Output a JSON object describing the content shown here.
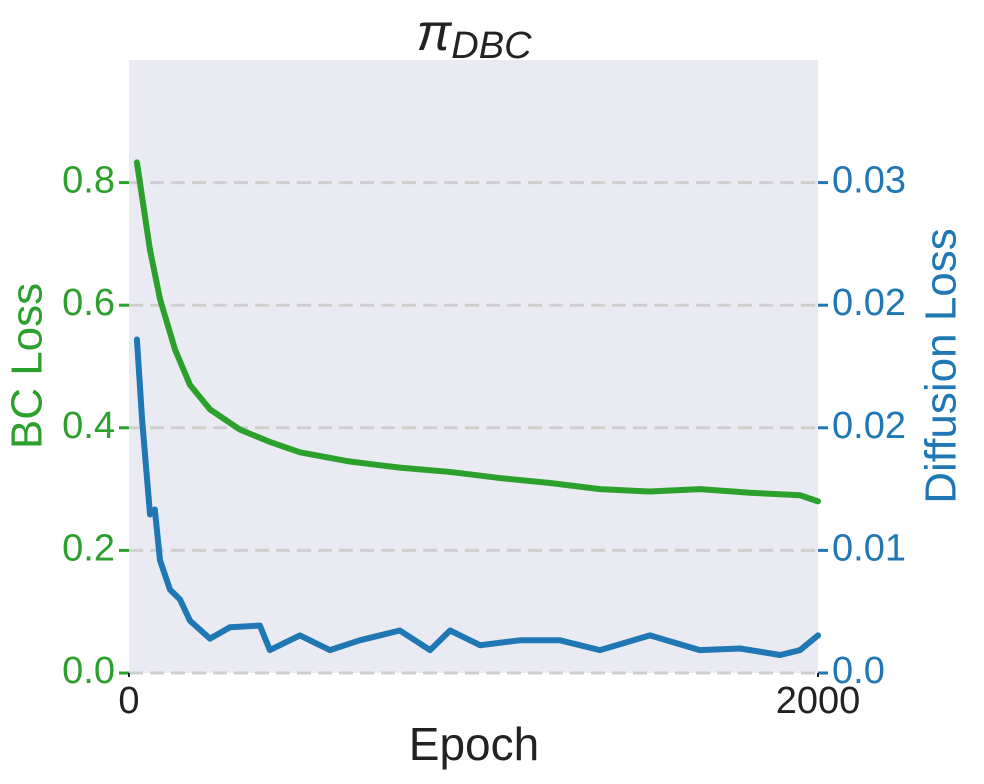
{
  "chart_data": {
    "type": "line",
    "title": {
      "symbol": "π",
      "subscript": "DBC"
    },
    "xlabel": "Epoch",
    "ylabel": "BC Loss",
    "y2label": "Diffusion Loss",
    "xlim": [
      0,
      2000
    ],
    "xticks": [
      0,
      2000
    ],
    "ylim": [
      0,
      1.0
    ],
    "yticks": [
      {
        "value": 0,
        "label": "0.0"
      },
      0.2,
      0.4,
      0.6,
      0.8
    ],
    "y2lim": [
      0,
      0.0375
    ],
    "y2ticks": [
      {
        "value": 0,
        "label": "0.0"
      },
      {
        "value": 0.0075,
        "label": "0.01"
      },
      {
        "value": 0.015,
        "label": "0.02"
      },
      {
        "value": 0.0225,
        "label": "0.02"
      },
      0.03
    ],
    "grid": true,
    "series": [
      {
        "name": "BC Loss",
        "color": "#2ca02c",
        "axis": "y",
        "x": [
          23,
          61,
          90,
          134,
          177,
          235,
          322,
          409,
          496,
          641,
          786,
          932,
          1077,
          1222,
          1367,
          1512,
          1657,
          1803,
          1948,
          2000
        ],
        "values": [
          0.833,
          0.69,
          0.61,
          0.527,
          0.47,
          0.43,
          0.397,
          0.377,
          0.36,
          0.345,
          0.335,
          0.328,
          0.318,
          0.31,
          0.3,
          0.296,
          0.3,
          0.294,
          0.29,
          0.28
        ]
      },
      {
        "name": "Diffusion Loss",
        "color": "#1f77b4",
        "axis": "y2",
        "x": [
          23,
          38,
          61,
          75,
          90,
          119,
          148,
          177,
          235,
          293,
          380,
          409,
          496,
          583,
          670,
          786,
          874,
          932,
          1019,
          1135,
          1251,
          1367,
          1512,
          1657,
          1774,
          1890,
          1948,
          2000
        ],
        "values": [
          0.0204,
          0.0155,
          0.0097,
          0.01,
          0.0069,
          0.0051,
          0.0045,
          0.0032,
          0.0021,
          0.0028,
          0.0029,
          0.0014,
          0.0023,
          0.0014,
          0.002,
          0.0026,
          0.0014,
          0.0026,
          0.0017,
          0.002,
          0.002,
          0.0014,
          0.0023,
          0.0014,
          0.0015,
          0.0011,
          0.0014,
          0.0023
        ]
      }
    ]
  }
}
